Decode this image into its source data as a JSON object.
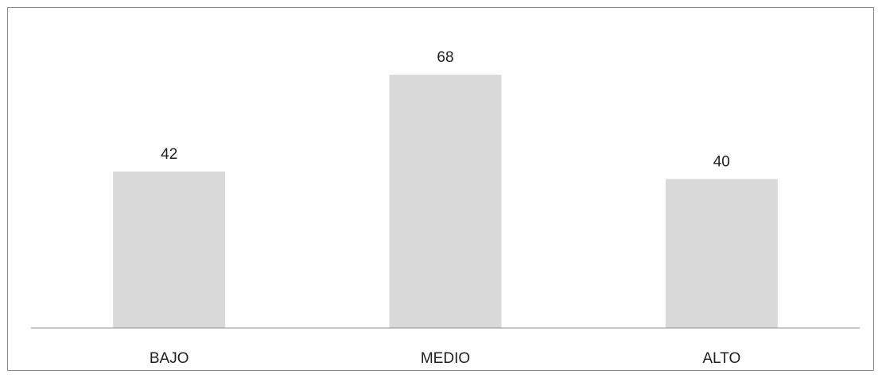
{
  "chart_data": {
    "type": "bar",
    "categories": [
      "BAJO",
      "MEDIO",
      "ALTO"
    ],
    "values": [
      42,
      68,
      40
    ],
    "title": "",
    "xlabel": "",
    "ylabel": "",
    "ylim": [
      0,
      78
    ],
    "grid": false,
    "legend": "none",
    "data_labels": true,
    "bar_color": "#d9d9d9",
    "axis_color": "#8c8c8c"
  }
}
